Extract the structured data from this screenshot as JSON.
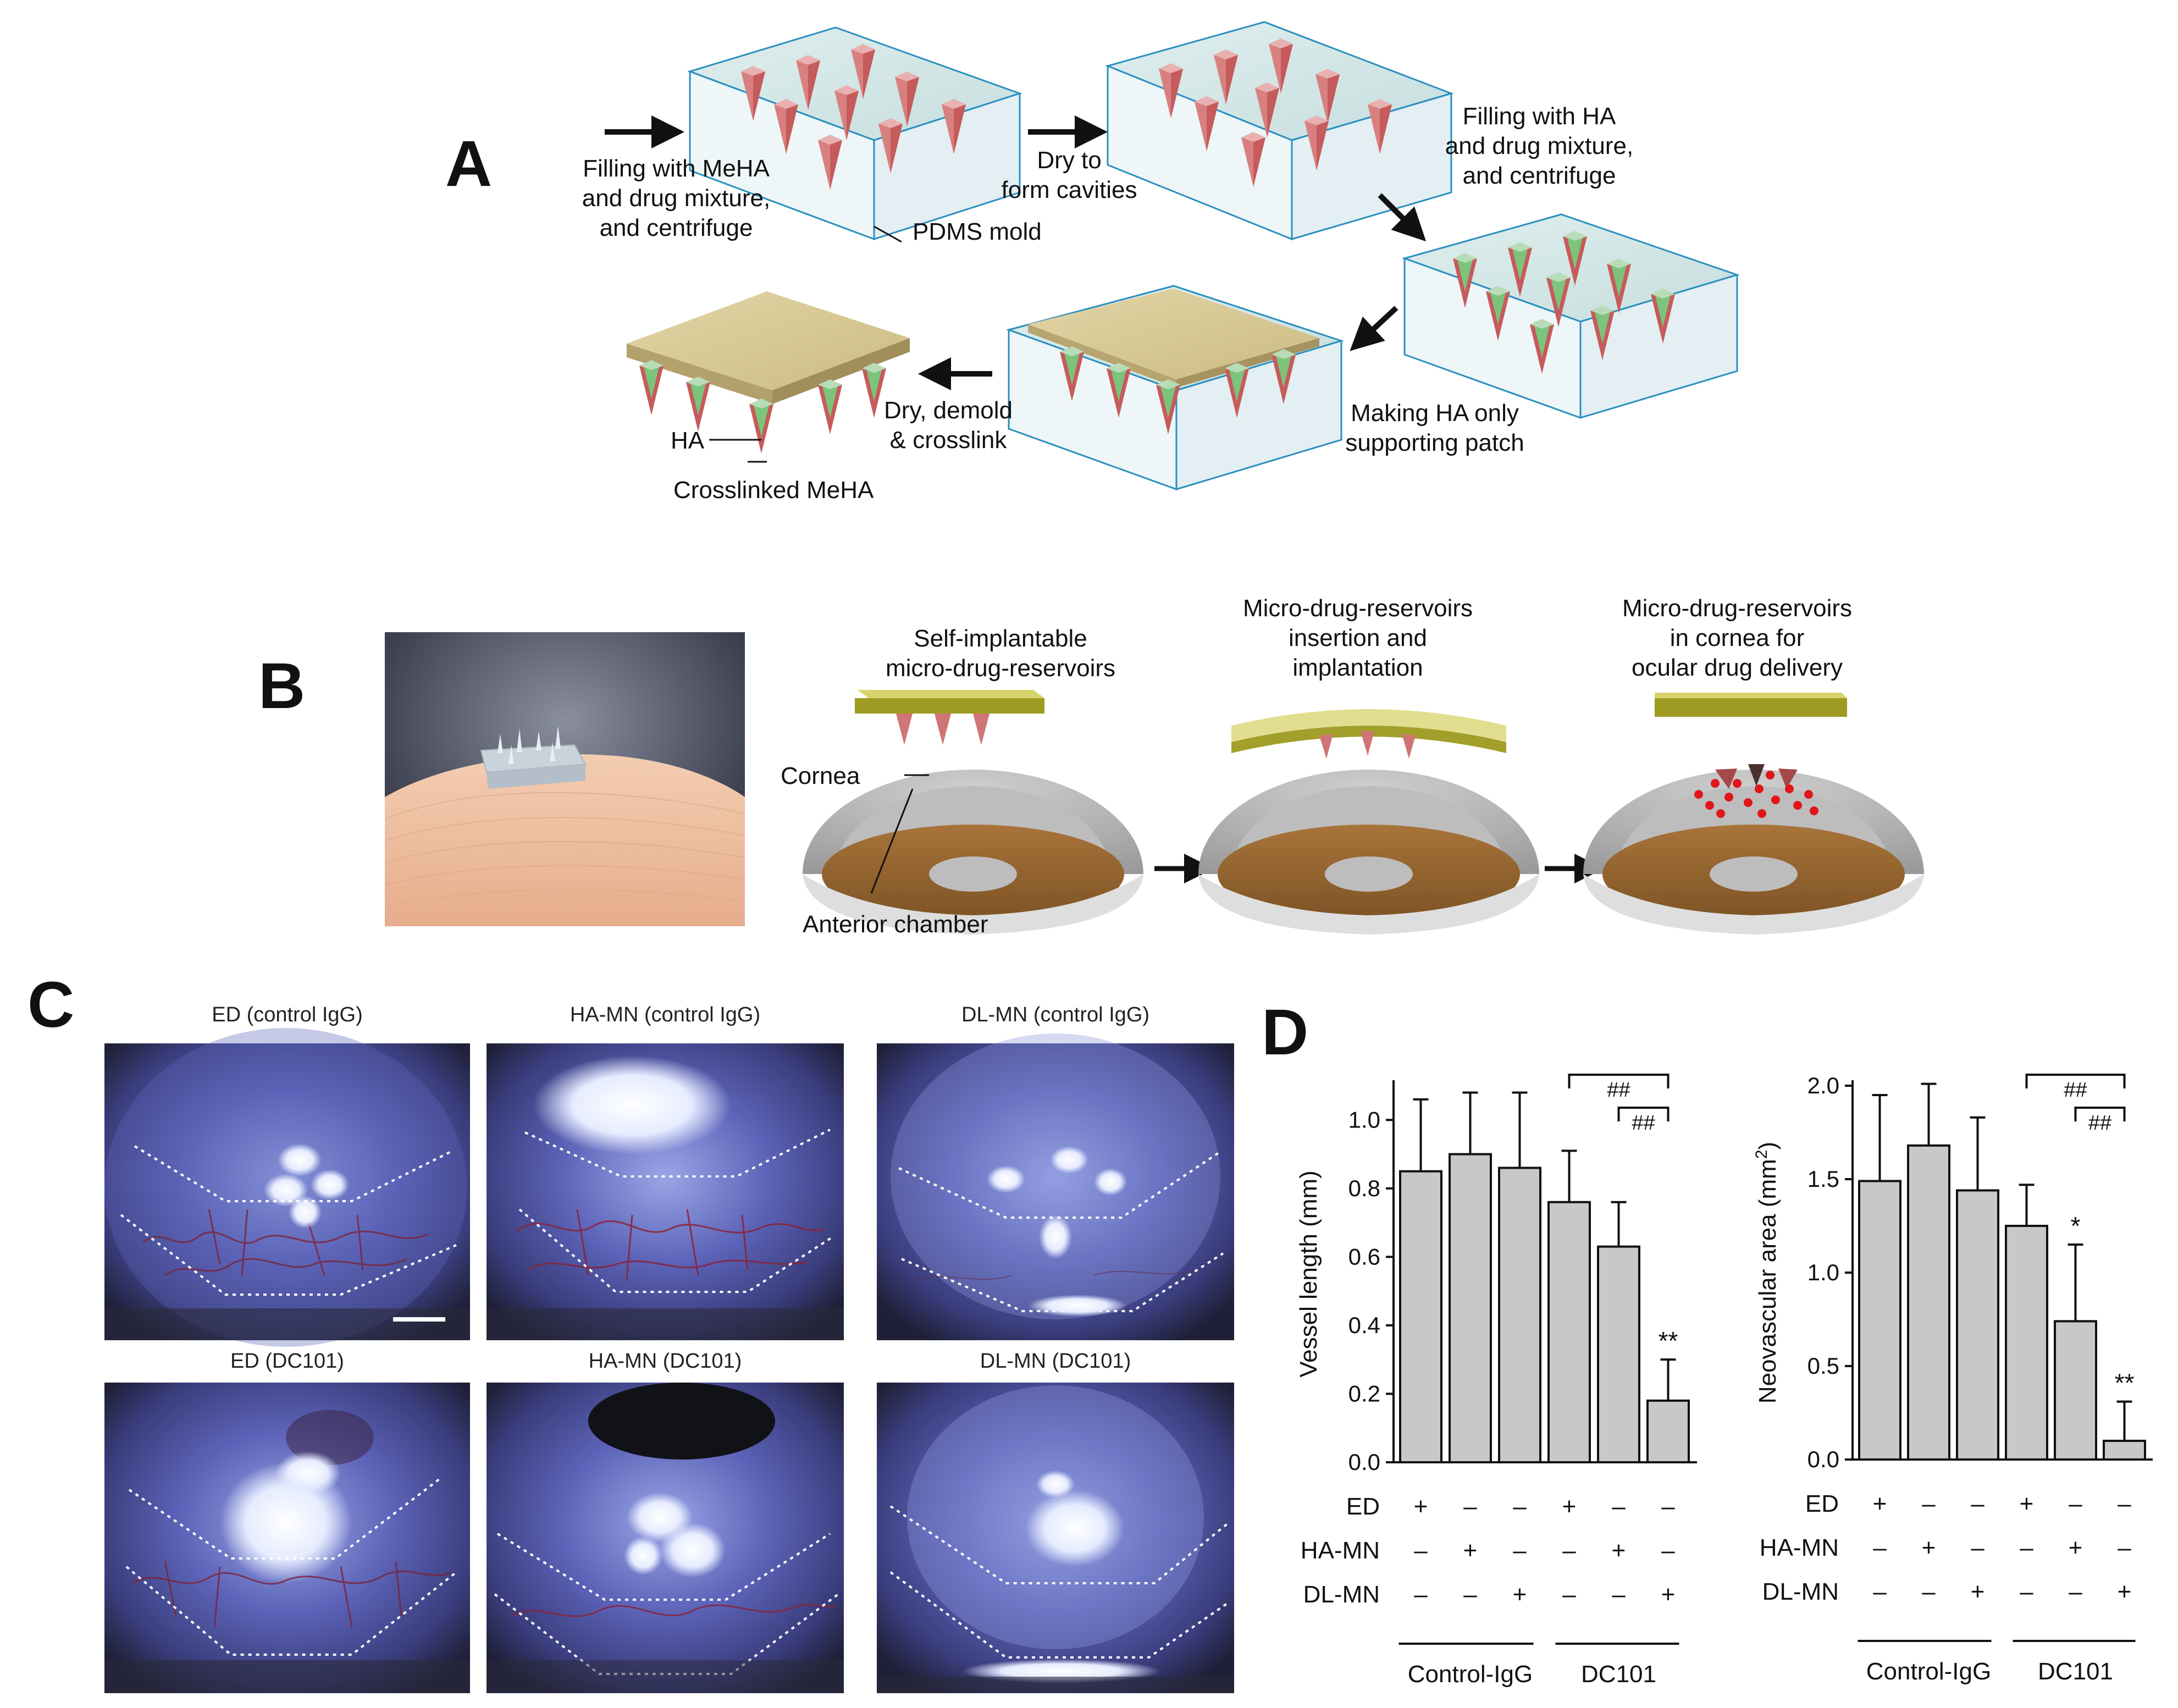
{
  "panel_a": {
    "letter": "A",
    "step1": "Filling with MeHA\nand drug mixture,\nand centrifuge",
    "mold": "PDMS mold",
    "step2": "Dry to\nform cavities",
    "step3": "Filling with HA\nand drug mixture,\nand centrifuge",
    "step4": "Making HA only\nsupporting patch",
    "step5": "Dry, demold\n& crosslink",
    "ha": "HA",
    "crosslinked": "Crosslinked MeHA"
  },
  "panel_b": {
    "letter": "B",
    "title1": "Self-implantable\nmicro-drug-reservoirs",
    "title2": "Micro-drug-reservoirs\ninsertion and\nimplantation",
    "title3": "Micro-drug-reservoirs\nin cornea for\nocular drug delivery",
    "cornea": "Cornea",
    "anterior": "Anterior chamber"
  },
  "panel_c": {
    "letter": "C",
    "photos": [
      {
        "caption": "ED (control IgG)"
      },
      {
        "caption": "HA-MN (control IgG)"
      },
      {
        "caption": "DL-MN (control IgG)"
      },
      {
        "caption": "ED (DC101)"
      },
      {
        "caption": "HA-MN (DC101)"
      },
      {
        "caption": "DL-MN (DC101)"
      }
    ]
  },
  "panel_d": {
    "letter": "D",
    "row_labels": [
      "ED",
      "HA-MN",
      "DL-MN"
    ],
    "plus": "+",
    "minus": "–",
    "group_labels": [
      "Control-IgG",
      "DC101"
    ],
    "sig_hash": "##",
    "colors": {
      "bar": "#c8c8c8",
      "stroke": "#111111"
    }
  },
  "chart_data": [
    {
      "type": "bar",
      "ylabel": "Vessel length (mm)",
      "ylim": [
        0,
        1.1
      ],
      "yticks": [
        "0.0",
        "0.2",
        "0.4",
        "0.6",
        "0.8",
        "1.0"
      ],
      "categories": [
        "ED (Control-IgG)",
        "HA-MN (Control-IgG)",
        "DL-MN (Control-IgG)",
        "ED (DC101)",
        "HA-MN (DC101)",
        "DL-MN (DC101)"
      ],
      "values": [
        0.85,
        0.9,
        0.86,
        0.76,
        0.63,
        0.18
      ],
      "errors": [
        0.21,
        0.18,
        0.22,
        0.15,
        0.13,
        0.12
      ],
      "bar_marks": [
        "",
        "",
        "",
        "",
        "",
        "**"
      ],
      "treatment": {
        "ED": [
          "+",
          "–",
          "–",
          "+",
          "–",
          "–"
        ],
        "HA-MN": [
          "–",
          "+",
          "–",
          "–",
          "+",
          "–"
        ],
        "DL-MN": [
          "–",
          "–",
          "+",
          "–",
          "–",
          "+"
        ]
      }
    },
    {
      "type": "bar",
      "ylabel": "Neovascular area (mm",
      "ylabel_sup": "2",
      "ylabel_end": ")",
      "ylim": [
        0,
        2.0
      ],
      "yticks": [
        "0.0",
        "0.5",
        "1.0",
        "1.5",
        "2.0"
      ],
      "categories": [
        "ED (Control-IgG)",
        "HA-MN (Control-IgG)",
        "DL-MN (Control-IgG)",
        "ED (DC101)",
        "HA-MN (DC101)",
        "DL-MN (DC101)"
      ],
      "values": [
        1.49,
        1.68,
        1.44,
        1.25,
        0.74,
        0.1
      ],
      "errors": [
        0.46,
        0.33,
        0.39,
        0.22,
        0.41,
        0.21
      ],
      "bar_marks": [
        "",
        "",
        "",
        "",
        "*",
        "**"
      ],
      "treatment": {
        "ED": [
          "+",
          "–",
          "–",
          "+",
          "–",
          "–"
        ],
        "HA-MN": [
          "–",
          "+",
          "–",
          "–",
          "+",
          "–"
        ],
        "DL-MN": [
          "–",
          "–",
          "+",
          "–",
          "–",
          "+"
        ]
      }
    }
  ]
}
